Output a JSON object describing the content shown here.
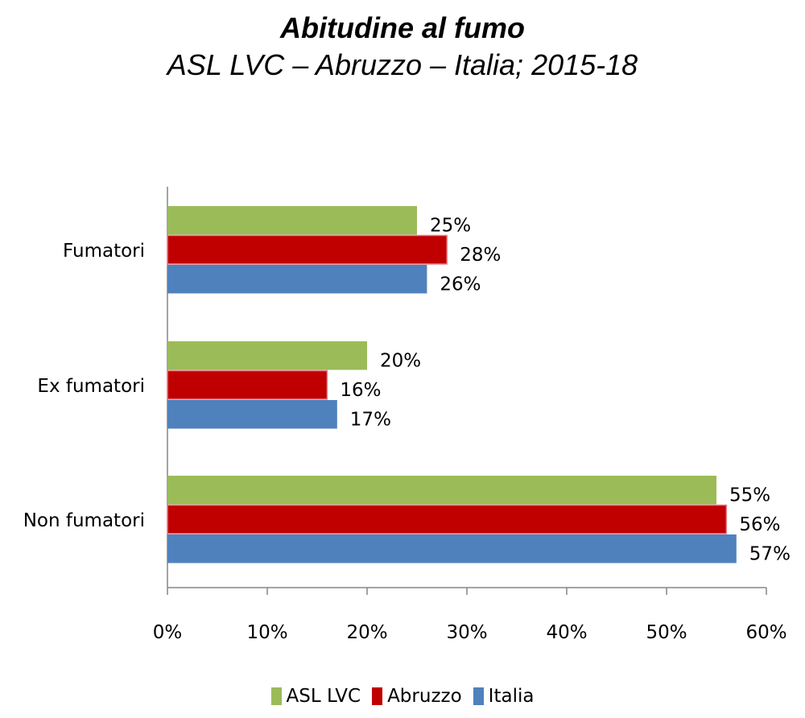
{
  "chart_data": {
    "type": "bar",
    "orientation": "horizontal",
    "title": "Abitudine al fumo",
    "subtitle": "ASL LVC – Abruzzo – Italia; 2015-18",
    "categories": [
      "Fumatori",
      "Ex fumatori",
      "Non fumatori"
    ],
    "series": [
      {
        "name": "ASL LVC",
        "color": "#9BBB59",
        "values": [
          25,
          20,
          55
        ],
        "labels": [
          "25%",
          "20%",
          "55%"
        ]
      },
      {
        "name": "Abruzzo",
        "color": "#C00000",
        "values": [
          28,
          16,
          56
        ],
        "labels": [
          "28%",
          "16%",
          "56%"
        ]
      },
      {
        "name": "Italia",
        "color": "#4F81BD",
        "values": [
          26,
          17,
          57
        ],
        "labels": [
          "26%",
          "17%",
          "57%"
        ]
      }
    ],
    "xlim": [
      0,
      60
    ],
    "xticks": [
      0,
      10,
      20,
      30,
      40,
      50,
      60
    ],
    "xtick_labels": [
      "0%",
      "10%",
      "20%",
      "30%",
      "40%",
      "50%",
      "60%"
    ],
    "grid": false,
    "legend_position": "bottom"
  }
}
